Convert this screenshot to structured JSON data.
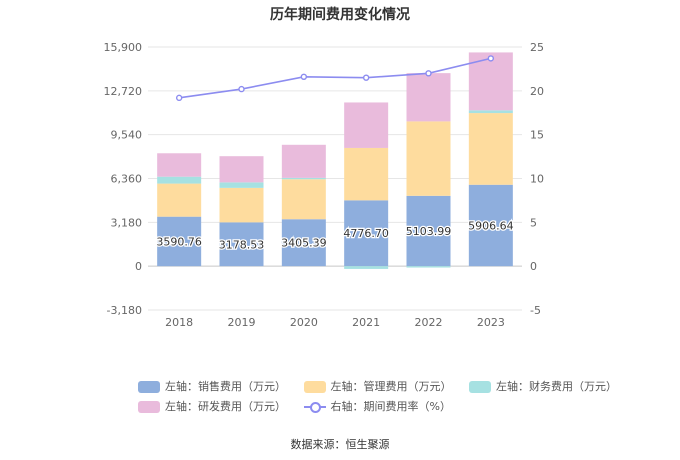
{
  "chart_data": {
    "type": "bar",
    "title": "历年期间费用变化情况",
    "categories": [
      "2018",
      "2019",
      "2020",
      "2021",
      "2022",
      "2023"
    ],
    "series": [
      {
        "name": "左轴：销售费用（万元）",
        "axis": "left",
        "color": "#8eaedd",
        "values": [
          3590.76,
          3178.53,
          3405.39,
          4776.7,
          5103.99,
          5906.64
        ]
      },
      {
        "name": "左轴：管理费用（万元）",
        "axis": "left",
        "color": "#fedc9e",
        "values": [
          2400,
          2500,
          2900,
          3800,
          5400,
          5200
        ]
      },
      {
        "name": "左轴：财务费用（万元）",
        "axis": "left",
        "color": "#a6e1e2",
        "values": [
          500,
          400,
          100,
          -200,
          -100,
          200
        ]
      },
      {
        "name": "左轴：研发费用（万元）",
        "axis": "left",
        "color": "#e9bbdc",
        "values": [
          1700,
          1900,
          2400,
          3300,
          3500,
          4200
        ]
      },
      {
        "name": "右轴：期间费用率（%）",
        "axis": "right",
        "type": "line",
        "color": "#8c8cf0",
        "values": [
          19.2,
          20.2,
          21.6,
          21.5,
          22.0,
          23.7
        ]
      }
    ],
    "data_labels": [
      "3590.76",
      "3178.53",
      "3405.39",
      "4776.70",
      "5103.99",
      "5906.64"
    ],
    "left_axis": {
      "ylim": [
        -3180,
        15900
      ],
      "ticks": [
        "-3,180",
        "0",
        "3,180",
        "6,360",
        "9,540",
        "12,720",
        "15,900"
      ]
    },
    "right_axis": {
      "ylim": [
        -5,
        25
      ],
      "ticks": [
        "-5",
        "0",
        "5",
        "10",
        "15",
        "20",
        "25"
      ]
    },
    "legend_position": "bottom",
    "grid": true
  },
  "footer": {
    "source": "数据来源：恒生聚源"
  }
}
